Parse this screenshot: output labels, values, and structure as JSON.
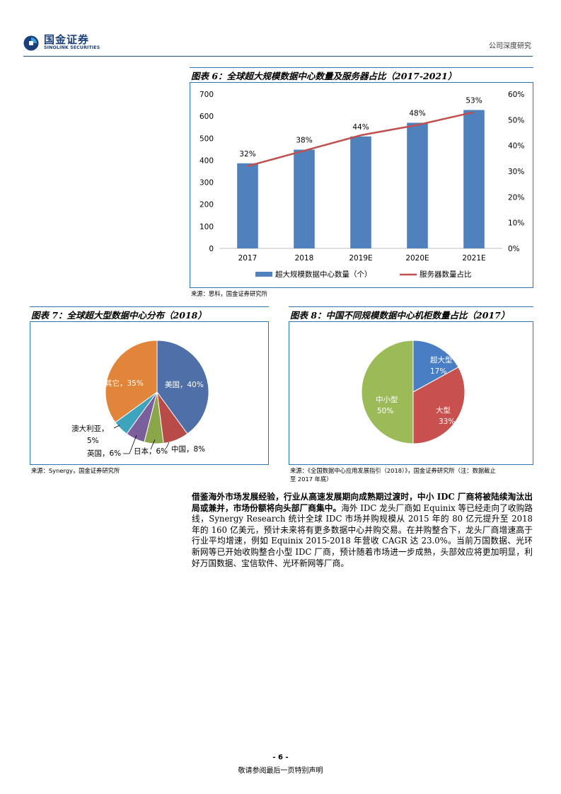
{
  "header": {
    "company_cn": "国金证券",
    "company_en": "SINOLINK SECURITIES",
    "report_type": "公司深度研究"
  },
  "figure6": {
    "title": "图表 6：全球超大规模数据中心数量及服务器占比（2017-2021）",
    "source": "来源：思科，国金证券研究所"
  },
  "figure7": {
    "title": "图表 7：全球超大型数据中心分布（2018）",
    "source": "来源：Synergy，国金证券研究所"
  },
  "figure8": {
    "title": "图表 8：中国不同规模数据中心机柜数量占比（2017）",
    "source_line1": "来源：《全国数据中心应用发展指引（2018）》，国金证券研究所（注：数据截止",
    "source_line2": "至 2017 年底）"
  },
  "chart_data": [
    {
      "type": "bar",
      "categories": [
        "2017",
        "2018",
        "2019E",
        "2020E",
        "2021E"
      ],
      "series": [
        {
          "name": "超大规模数据中心数量（个）",
          "kind": "bar",
          "axis": "left",
          "values": [
            386,
            448,
            508,
            570,
            628
          ],
          "color": "#4f81bd"
        },
        {
          "name": "服务器数量占比",
          "kind": "line",
          "axis": "right",
          "values": [
            32,
            38,
            44,
            48,
            53
          ],
          "value_labels": [
            "32%",
            "38%",
            "44%",
            "48%",
            "53%"
          ],
          "color": "#c0504d"
        }
      ],
      "y_left": {
        "lim": [
          0,
          700
        ],
        "ticks": [
          "0",
          "100",
          "200",
          "300",
          "400",
          "500",
          "600",
          "700"
        ]
      },
      "y_right": {
        "lim": [
          0,
          60
        ],
        "ticks": [
          "0%",
          "10%",
          "20%",
          "30%",
          "40%",
          "50%",
          "60%"
        ]
      },
      "legend_position": "bottom"
    },
    {
      "type": "pie",
      "slices": [
        {
          "label": "美国，40%",
          "value": 40,
          "color": "#4f6fa8"
        },
        {
          "label": "中国，8%",
          "value": 8,
          "color": "#b84a47"
        },
        {
          "label": "日本，6%",
          "value": 6,
          "color": "#8aa648"
        },
        {
          "label": "英国，6%",
          "value": 6,
          "color": "#7b5f9c"
        },
        {
          "label": "澳大利亚，5%",
          "value": 5,
          "color": "#3ea3bd"
        },
        {
          "label": "其它，35%",
          "value": 35,
          "color": "#e0853a"
        }
      ]
    },
    {
      "type": "pie",
      "slices": [
        {
          "label": "超大型",
          "value_label": "17%",
          "value": 17,
          "color": "#4a7ec4"
        },
        {
          "label": "大型",
          "value_label": "33%",
          "value": 33,
          "color": "#c8514f"
        },
        {
          "label": "中小型",
          "value_label": "50%",
          "value": 50,
          "color": "#9bbb59"
        }
      ]
    }
  ],
  "body": {
    "bold_lead": "借鉴海外市场发展经验，行业从高速发展期向成熟期过渡时，中小 IDC 厂商将被陆续淘汰出局或兼并，市场份额将向头部厂商集中。",
    "text": "海外 IDC 龙头厂商如 Equinix 等已经走向了收购路线，Synergy Research 统计全球 IDC 市场并购规模从 2015 年的 80 亿元提升至 2018 年的 160 亿美元，预计未来将有更多数据中心并购交易。在并购整合下，龙头厂商增速高于行业平均增速，例如 Equinix 2015-2018 年营收 CAGR 达 23.0%。当前万国数据、光环新网等已开始收购整合小型 IDC 厂商，预计随着市场进一步成熟，头部效应将更加明显，利好万国数据、宝信软件、光环新网等厂商。"
  },
  "footer": {
    "page_number": "- 6 -",
    "note": "敬请参阅最后一页特别声明"
  }
}
